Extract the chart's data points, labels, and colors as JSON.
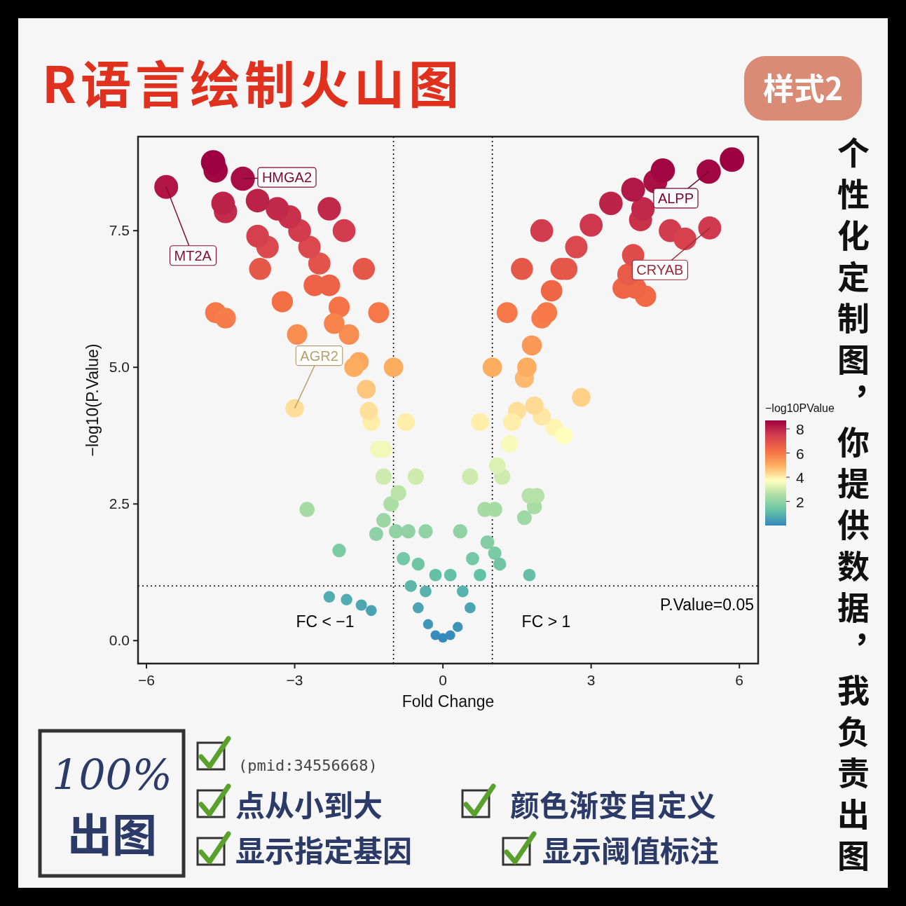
{
  "chart_data": {
    "type": "bubble",
    "xlabel": "Fold Change",
    "ylabel": "−log10(P.Value)",
    "clabel": "−log10PValue",
    "xlim": [
      -6.17,
      6.38
    ],
    "ylim": [
      -0.42,
      9.22
    ],
    "xticks": [
      {
        "value": -6,
        "label": "−6"
      },
      {
        "value": -3,
        "label": "−3"
      },
      0,
      3,
      6
    ],
    "yticks": [
      {
        "value": 0,
        "label": "0.0"
      },
      2.5,
      {
        "value": 5,
        "label": "5.0"
      },
      7.5
    ],
    "clim": [
      0,
      8.7
    ],
    "cticks": [
      2,
      4,
      6,
      8
    ],
    "grid": false,
    "legend": "right",
    "marker": "circle",
    "ref_lines": [
      {
        "axis": "x",
        "value": -1,
        "label": "FC < −1",
        "line_style": "dotted",
        "color": "#000000"
      },
      {
        "axis": "x",
        "value": 1,
        "label": "FC > 1",
        "line_style": "dotted",
        "color": "#000000"
      },
      {
        "axis": "y",
        "value": 1,
        "line_style": "dotted",
        "color": "#000000"
      }
    ],
    "annotations": [
      "R语言绘制火山图",
      "样式2",
      "个性化定制图，你提供数据，我负责出图",
      "100%",
      "出图",
      "(pmid:34556668)",
      "点从小到大",
      "颜色渐变自定义",
      "显示指定基因",
      "显示阈值标注",
      "P.Value=0.05",
      {
        "text": "MT2A",
        "x": -5.6,
        "y": 8.3
      },
      {
        "text": "HMGA2",
        "x": -4.05,
        "y": 8.45
      },
      {
        "text": "ALPP",
        "x": 5.38,
        "y": 8.58
      },
      {
        "text": "CRYAB",
        "x": 5.4,
        "y": 7.55
      },
      {
        "text": "AGR2",
        "x": -3.0,
        "y": 4.25
      }
    ],
    "x": [
      0,
      -0.15,
      0.15,
      -0.3,
      0.3,
      -0.5,
      0.55,
      -0.65,
      0.75,
      -0.8,
      0.9,
      -0.95,
      1.05,
      -1.05,
      1.2,
      -1.2,
      1.35,
      -1.3,
      1.5,
      -1.45,
      1.65,
      -1.55,
      1.8,
      -1.7,
      2.0,
      -1.9,
      2.2,
      -2.1,
      2.4,
      -2.3,
      2.7,
      -2.5,
      3.0,
      -2.7,
      3.4,
      -2.9,
      -3.1,
      -0.15,
      0.15,
      -0.35,
      0.35,
      -0.55,
      0.55,
      -0.75,
      0.75,
      -1.0,
      1.0,
      -1.3,
      1.3,
      -1.6,
      1.6,
      -2.0,
      2.0,
      -2.3,
      0.4,
      -0.35,
      0.6,
      -0.5,
      0.85,
      -0.7,
      1.1,
      -0.9,
      1.4,
      -1.2,
      1.7,
      -1.5,
      2.1,
      -1.8,
      2.5,
      -2.2,
      -2.6,
      -2.3,
      -1.95,
      -1.65,
      -1.45,
      -1.35,
      -1.2,
      -2.1,
      -2.75,
      -3.0,
      -2.95,
      -3.25,
      -4.6,
      -4.4,
      -3.7,
      -3.55,
      -3.75,
      -3.35,
      -3.75,
      -4.4,
      -4.45,
      -5.6,
      -4.05,
      -4.6,
      -4.65,
      1.75,
      1.05,
      1.15,
      1.65,
      1.85,
      1.75,
      1.9,
      2.25,
      2.45,
      2.0,
      1.85,
      2.8,
      4.1,
      3.65,
      3.9,
      3.75,
      3.85,
      4.6,
      4.9,
      5.4,
      4.0,
      4.05,
      3.85,
      4.3,
      4.45,
      5.38,
      5.85
    ],
    "values": [
      0.05,
      0.1,
      0.1,
      0.3,
      0.25,
      0.6,
      0.6,
      1.0,
      1.2,
      1.5,
      1.8,
      2.0,
      2.4,
      2.5,
      3.0,
      3.0,
      3.6,
      3.5,
      4.2,
      4.0,
      4.8,
      4.6,
      5.4,
      5.1,
      5.9,
      5.6,
      6.4,
      6.1,
      6.8,
      6.5,
      7.2,
      6.9,
      7.6,
      7.2,
      8.0,
      7.5,
      7.75,
      1.2,
      1.2,
      2.0,
      2.0,
      3.0,
      3.0,
      4.0,
      4.0,
      5.0,
      5.0,
      6.0,
      6.0,
      6.8,
      6.8,
      7.5,
      7.5,
      7.9,
      0.9,
      0.9,
      1.5,
      1.4,
      2.4,
      2.0,
      3.2,
      2.7,
      4.0,
      3.5,
      5.0,
      4.2,
      6.0,
      5.0,
      6.8,
      5.8,
      6.5,
      0.8,
      0.75,
      0.65,
      0.55,
      1.95,
      2.2,
      1.65,
      2.4,
      4.25,
      5.6,
      6.2,
      6.0,
      5.9,
      6.8,
      7.2,
      7.4,
      7.9,
      8.05,
      7.85,
      8.0,
      8.3,
      8.45,
      8.6,
      8.75,
      1.2,
      1.6,
      1.4,
      2.25,
      2.45,
      2.65,
      2.65,
      3.9,
      3.75,
      4.1,
      4.3,
      4.45,
      6.3,
      6.45,
      6.45,
      6.7,
      7.05,
      7.5,
      7.35,
      7.55,
      7.7,
      7.9,
      8.25,
      8.4,
      8.6,
      8.58,
      8.8
    ],
    "sizes": [
      0.15,
      0.16,
      0.16,
      0.17,
      0.17,
      0.2,
      0.2,
      0.24,
      0.26,
      0.29,
      0.32,
      0.34,
      0.38,
      0.39,
      0.44,
      0.44,
      0.5,
      0.49,
      0.55,
      0.53,
      0.61,
      0.59,
      0.67,
      0.64,
      0.72,
      0.69,
      0.77,
      0.74,
      0.81,
      0.78,
      0.84,
      0.82,
      0.88,
      0.84,
      0.92,
      0.87,
      0.9,
      0.26,
      0.26,
      0.34,
      0.34,
      0.44,
      0.44,
      0.53,
      0.53,
      0.63,
      0.63,
      0.73,
      0.73,
      0.81,
      0.81,
      0.87,
      0.87,
      0.91,
      0.23,
      0.23,
      0.29,
      0.28,
      0.38,
      0.34,
      0.46,
      0.41,
      0.53,
      0.49,
      0.63,
      0.55,
      0.73,
      0.63,
      0.81,
      0.71,
      0.78,
      0.22,
      0.22,
      0.21,
      0.2,
      0.33,
      0.36,
      0.31,
      0.38,
      0.56,
      0.69,
      0.75,
      0.73,
      0.72,
      0.81,
      0.84,
      0.86,
      0.91,
      0.93,
      0.91,
      0.92,
      0.95,
      0.97,
      0.98,
      1.0,
      0.26,
      0.3,
      0.28,
      0.36,
      0.38,
      0.4,
      0.4,
      0.52,
      0.51,
      0.54,
      0.56,
      0.58,
      0.76,
      0.77,
      0.77,
      0.8,
      0.83,
      0.87,
      0.86,
      0.88,
      0.89,
      0.91,
      0.95,
      0.96,
      0.98,
      0.98,
      1.0
    ],
    "cvalues": [
      0.05,
      0.1,
      0.1,
      0.3,
      0.25,
      0.6,
      0.6,
      1.0,
      1.2,
      1.5,
      1.8,
      2.0,
      2.4,
      2.5,
      3.0,
      3.0,
      3.6,
      3.5,
      4.2,
      4.0,
      4.8,
      4.6,
      5.4,
      5.1,
      5.9,
      5.6,
      6.4,
      6.1,
      6.8,
      6.5,
      7.2,
      6.9,
      7.6,
      7.2,
      8.0,
      7.5,
      7.75,
      1.2,
      1.2,
      2.0,
      2.0,
      3.0,
      3.0,
      4.0,
      4.0,
      5.0,
      5.0,
      6.0,
      6.0,
      6.8,
      6.8,
      7.5,
      7.5,
      7.9,
      0.9,
      0.9,
      1.5,
      1.4,
      2.4,
      2.0,
      3.2,
      2.7,
      4.0,
      3.5,
      5.0,
      4.2,
      6.0,
      5.0,
      6.8,
      5.8,
      6.5,
      0.8,
      0.75,
      0.65,
      0.55,
      1.95,
      2.2,
      1.65,
      2.4,
      4.25,
      5.6,
      6.2,
      6.0,
      5.9,
      6.8,
      7.2,
      7.4,
      7.9,
      8.05,
      7.85,
      8.0,
      8.3,
      8.45,
      8.6,
      8.75,
      1.2,
      1.6,
      1.4,
      2.25,
      2.45,
      2.65,
      2.65,
      3.9,
      3.75,
      4.1,
      4.3,
      4.45,
      6.3,
      6.45,
      6.45,
      6.7,
      7.05,
      7.5,
      7.35,
      7.55,
      7.7,
      7.9,
      8.25,
      8.4,
      8.6,
      8.58,
      8.8
    ]
  }
}
